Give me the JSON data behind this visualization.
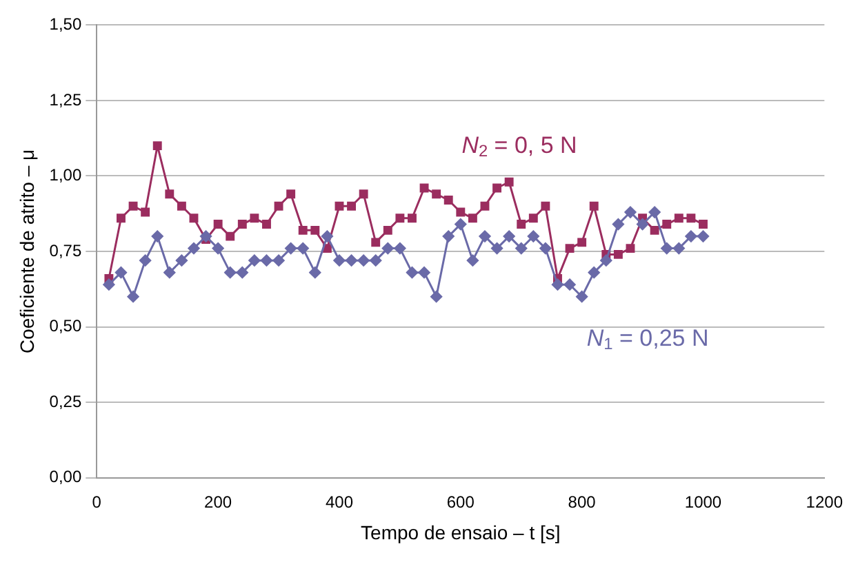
{
  "chart_data": {
    "type": "line",
    "xlabel": "Tempo de ensaio – t [s]",
    "ylabel": "Coeficiente de atrito – μ",
    "x": [
      20,
      40,
      60,
      80,
      100,
      120,
      140,
      160,
      180,
      200,
      220,
      240,
      260,
      280,
      300,
      320,
      340,
      360,
      380,
      400,
      420,
      440,
      460,
      480,
      500,
      520,
      540,
      560,
      580,
      600,
      620,
      640,
      660,
      680,
      700,
      720,
      740,
      760,
      780,
      800,
      820,
      840,
      860,
      880,
      900,
      920,
      940,
      960,
      980,
      1000
    ],
    "series": [
      {
        "name": "N$_{2}$ = 0, 5 N",
        "color": "#9b2d5f",
        "marker": "square",
        "values": [
          0.66,
          0.86,
          0.9,
          0.88,
          1.1,
          0.94,
          0.9,
          0.86,
          0.79,
          0.84,
          0.8,
          0.84,
          0.86,
          0.84,
          0.9,
          0.94,
          0.82,
          0.82,
          0.76,
          0.9,
          0.9,
          0.94,
          0.78,
          0.82,
          0.86,
          0.86,
          0.96,
          0.94,
          0.92,
          0.88,
          0.86,
          0.9,
          0.96,
          0.98,
          0.84,
          0.86,
          0.9,
          0.66,
          0.76,
          0.78,
          0.9,
          0.74,
          0.74,
          0.76,
          0.86,
          0.82,
          0.84,
          0.86,
          0.86,
          0.84
        ]
      },
      {
        "name": "N$_{1}$ = 0,25 N",
        "color": "#6a6aa8",
        "marker": "diamond",
        "values": [
          0.64,
          0.68,
          0.6,
          0.72,
          0.8,
          0.68,
          0.72,
          0.76,
          0.8,
          0.76,
          0.68,
          0.68,
          0.72,
          0.72,
          0.72,
          0.76,
          0.76,
          0.68,
          0.8,
          0.72,
          0.72,
          0.72,
          0.72,
          0.76,
          0.76,
          0.68,
          0.68,
          0.6,
          0.8,
          0.84,
          0.72,
          0.8,
          0.76,
          0.8,
          0.76,
          0.8,
          0.76,
          0.64,
          0.64,
          0.6,
          0.68,
          0.72,
          0.84,
          0.88,
          0.84,
          0.88,
          0.76,
          0.76,
          0.8,
          0.8
        ]
      }
    ],
    "xlim": [
      0,
      1200
    ],
    "xticks": [
      0,
      200,
      400,
      600,
      800,
      1000,
      1200
    ],
    "ylim": [
      0,
      1.5
    ],
    "yticks": [
      {
        "value": 0,
        "label": "0,00"
      },
      {
        "value": 0.25,
        "label": "0,25"
      },
      {
        "value": 0.5,
        "label": "0,50"
      },
      {
        "value": 0.75,
        "label": "0,75"
      },
      {
        "value": 1,
        "label": "1,00"
      },
      {
        "value": 1.25,
        "label": "1,25"
      },
      {
        "value": 1.5,
        "label": "1,50"
      }
    ],
    "grid": "y",
    "legend": false,
    "line_style": "solid"
  }
}
